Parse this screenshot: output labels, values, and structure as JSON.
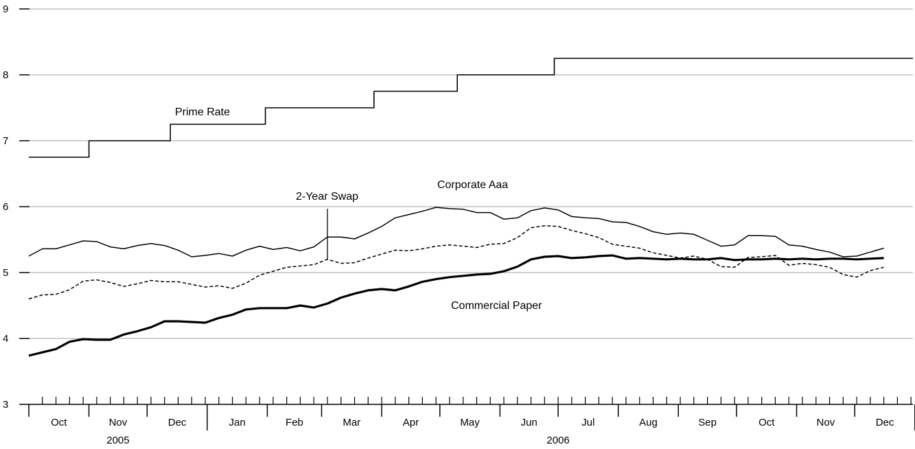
{
  "chart_data": {
    "type": "line",
    "title": "",
    "xlabel": "",
    "ylabel": "",
    "ylim": [
      3,
      9
    ],
    "yticks": [
      "3",
      "4",
      "5",
      "6",
      "7",
      "8",
      "9"
    ],
    "grid": "horizontal",
    "x_start": "2005-10-01",
    "x_end": "2006-12-31",
    "months": [
      "Oct",
      "Nov",
      "Dec",
      "Jan",
      "Feb",
      "Mar",
      "Apr",
      "May",
      "Jun",
      "Jul",
      "Aug",
      "Sep",
      "Oct",
      "Nov",
      "Dec"
    ],
    "years": [
      {
        "label": "2005",
        "center_month": 1
      },
      {
        "label": "2006",
        "center_month": 8.5
      }
    ],
    "series": [
      {
        "name": "Prime Rate",
        "style": "step",
        "points": [
          [
            "2005-10-01",
            6.75
          ],
          [
            "2005-11-01",
            7.0
          ],
          [
            "2005-12-13",
            7.25
          ],
          [
            "2006-01-31",
            7.5
          ],
          [
            "2006-03-28",
            7.75
          ],
          [
            "2006-05-10",
            8.0
          ],
          [
            "2006-06-29",
            8.25
          ],
          [
            "2006-12-31",
            8.25
          ]
        ]
      },
      {
        "name": "Corporate Aaa",
        "style": "thin",
        "points": [
          [
            "2005-10-01",
            5.25
          ],
          [
            "2005-10-08",
            5.36
          ],
          [
            "2005-10-15",
            5.36
          ],
          [
            "2005-10-22",
            5.42
          ],
          [
            "2005-10-29",
            5.48
          ],
          [
            "2005-11-05",
            5.47
          ],
          [
            "2005-11-12",
            5.39
          ],
          [
            "2005-11-19",
            5.36
          ],
          [
            "2005-11-26",
            5.41
          ],
          [
            "2005-12-03",
            5.44
          ],
          [
            "2005-12-10",
            5.41
          ],
          [
            "2005-12-17",
            5.34
          ],
          [
            "2005-12-24",
            5.24
          ],
          [
            "2005-12-31",
            5.26
          ],
          [
            "2006-01-07",
            5.29
          ],
          [
            "2006-01-14",
            5.25
          ],
          [
            "2006-01-21",
            5.34
          ],
          [
            "2006-01-28",
            5.4
          ],
          [
            "2006-02-04",
            5.35
          ],
          [
            "2006-02-11",
            5.38
          ],
          [
            "2006-02-18",
            5.33
          ],
          [
            "2006-02-25",
            5.39
          ],
          [
            "2006-03-04",
            5.54
          ],
          [
            "2006-03-11",
            5.54
          ],
          [
            "2006-03-18",
            5.51
          ],
          [
            "2006-03-25",
            5.6
          ],
          [
            "2006-04-01",
            5.7
          ],
          [
            "2006-04-08",
            5.83
          ],
          [
            "2006-04-15",
            5.88
          ],
          [
            "2006-04-22",
            5.93
          ],
          [
            "2006-04-29",
            5.99
          ],
          [
            "2006-05-06",
            5.97
          ],
          [
            "2006-05-13",
            5.96
          ],
          [
            "2006-05-20",
            5.91
          ],
          [
            "2006-05-27",
            5.91
          ],
          [
            "2006-06-03",
            5.81
          ],
          [
            "2006-06-10",
            5.83
          ],
          [
            "2006-06-17",
            5.94
          ],
          [
            "2006-06-24",
            5.98
          ],
          [
            "2006-07-01",
            5.95
          ],
          [
            "2006-07-08",
            5.85
          ],
          [
            "2006-07-15",
            5.83
          ],
          [
            "2006-07-22",
            5.82
          ],
          [
            "2006-07-29",
            5.77
          ],
          [
            "2006-08-05",
            5.76
          ],
          [
            "2006-08-12",
            5.7
          ],
          [
            "2006-08-19",
            5.62
          ],
          [
            "2006-08-26",
            5.58
          ],
          [
            "2006-09-02",
            5.6
          ],
          [
            "2006-09-09",
            5.58
          ],
          [
            "2006-09-16",
            5.49
          ],
          [
            "2006-09-23",
            5.4
          ],
          [
            "2006-09-30",
            5.42
          ],
          [
            "2006-10-07",
            5.56
          ],
          [
            "2006-10-14",
            5.56
          ],
          [
            "2006-10-21",
            5.55
          ],
          [
            "2006-10-28",
            5.42
          ],
          [
            "2006-11-04",
            5.4
          ],
          [
            "2006-11-11",
            5.35
          ],
          [
            "2006-11-18",
            5.31
          ],
          [
            "2006-11-25",
            5.24
          ],
          [
            "2006-12-02",
            5.25
          ],
          [
            "2006-12-09",
            5.31
          ],
          [
            "2006-12-16",
            5.37
          ]
        ]
      },
      {
        "name": "2-Year Swap",
        "style": "dashed",
        "points": [
          [
            "2005-10-01",
            4.6
          ],
          [
            "2005-10-08",
            4.66
          ],
          [
            "2005-10-15",
            4.67
          ],
          [
            "2005-10-22",
            4.74
          ],
          [
            "2005-10-29",
            4.87
          ],
          [
            "2005-11-05",
            4.89
          ],
          [
            "2005-11-12",
            4.85
          ],
          [
            "2005-11-19",
            4.79
          ],
          [
            "2005-11-26",
            4.83
          ],
          [
            "2005-12-03",
            4.88
          ],
          [
            "2005-12-10",
            4.86
          ],
          [
            "2005-12-17",
            4.86
          ],
          [
            "2005-12-24",
            4.82
          ],
          [
            "2005-12-31",
            4.78
          ],
          [
            "2006-01-07",
            4.8
          ],
          [
            "2006-01-14",
            4.76
          ],
          [
            "2006-01-21",
            4.84
          ],
          [
            "2006-01-28",
            4.96
          ],
          [
            "2006-02-04",
            5.02
          ],
          [
            "2006-02-11",
            5.08
          ],
          [
            "2006-02-18",
            5.1
          ],
          [
            "2006-02-25",
            5.12
          ],
          [
            "2006-03-04",
            5.2
          ],
          [
            "2006-03-11",
            5.14
          ],
          [
            "2006-03-18",
            5.15
          ],
          [
            "2006-03-25",
            5.22
          ],
          [
            "2006-04-01",
            5.28
          ],
          [
            "2006-04-08",
            5.34
          ],
          [
            "2006-04-15",
            5.33
          ],
          [
            "2006-04-22",
            5.36
          ],
          [
            "2006-04-29",
            5.4
          ],
          [
            "2006-05-06",
            5.42
          ],
          [
            "2006-05-13",
            5.4
          ],
          [
            "2006-05-20",
            5.38
          ],
          [
            "2006-05-27",
            5.43
          ],
          [
            "2006-06-03",
            5.44
          ],
          [
            "2006-06-10",
            5.53
          ],
          [
            "2006-06-17",
            5.68
          ],
          [
            "2006-06-24",
            5.71
          ],
          [
            "2006-07-01",
            5.7
          ],
          [
            "2006-07-08",
            5.64
          ],
          [
            "2006-07-15",
            5.59
          ],
          [
            "2006-07-22",
            5.53
          ],
          [
            "2006-07-29",
            5.43
          ],
          [
            "2006-08-05",
            5.4
          ],
          [
            "2006-08-12",
            5.37
          ],
          [
            "2006-08-19",
            5.3
          ],
          [
            "2006-08-26",
            5.26
          ],
          [
            "2006-09-02",
            5.22
          ],
          [
            "2006-09-09",
            5.25
          ],
          [
            "2006-09-16",
            5.2
          ],
          [
            "2006-09-23",
            5.09
          ],
          [
            "2006-09-30",
            5.08
          ],
          [
            "2006-10-07",
            5.23
          ],
          [
            "2006-10-14",
            5.24
          ],
          [
            "2006-10-21",
            5.26
          ],
          [
            "2006-10-28",
            5.11
          ],
          [
            "2006-11-04",
            5.14
          ],
          [
            "2006-11-11",
            5.12
          ],
          [
            "2006-11-18",
            5.08
          ],
          [
            "2006-11-25",
            4.97
          ],
          [
            "2006-12-02",
            4.93
          ],
          [
            "2006-12-09",
            5.03
          ],
          [
            "2006-12-16",
            5.08
          ]
        ]
      },
      {
        "name": "Commercial Paper",
        "style": "thick",
        "points": [
          [
            "2005-10-01",
            3.74
          ],
          [
            "2005-10-08",
            3.79
          ],
          [
            "2005-10-15",
            3.84
          ],
          [
            "2005-10-22",
            3.95
          ],
          [
            "2005-10-29",
            3.99
          ],
          [
            "2005-11-05",
            3.98
          ],
          [
            "2005-11-12",
            3.98
          ],
          [
            "2005-11-19",
            4.06
          ],
          [
            "2005-11-26",
            4.11
          ],
          [
            "2005-12-03",
            4.17
          ],
          [
            "2005-12-10",
            4.26
          ],
          [
            "2005-12-17",
            4.26
          ],
          [
            "2005-12-24",
            4.25
          ],
          [
            "2005-12-31",
            4.24
          ],
          [
            "2006-01-07",
            4.31
          ],
          [
            "2006-01-14",
            4.36
          ],
          [
            "2006-01-21",
            4.44
          ],
          [
            "2006-01-28",
            4.46
          ],
          [
            "2006-02-04",
            4.46
          ],
          [
            "2006-02-11",
            4.46
          ],
          [
            "2006-02-18",
            4.5
          ],
          [
            "2006-02-25",
            4.47
          ],
          [
            "2006-03-04",
            4.53
          ],
          [
            "2006-03-11",
            4.62
          ],
          [
            "2006-03-18",
            4.68
          ],
          [
            "2006-03-25",
            4.73
          ],
          [
            "2006-04-01",
            4.75
          ],
          [
            "2006-04-08",
            4.73
          ],
          [
            "2006-04-15",
            4.79
          ],
          [
            "2006-04-22",
            4.86
          ],
          [
            "2006-04-29",
            4.9
          ],
          [
            "2006-05-06",
            4.93
          ],
          [
            "2006-05-13",
            4.95
          ],
          [
            "2006-05-20",
            4.97
          ],
          [
            "2006-05-27",
            4.98
          ],
          [
            "2006-06-03",
            5.02
          ],
          [
            "2006-06-10",
            5.09
          ],
          [
            "2006-06-17",
            5.2
          ],
          [
            "2006-06-24",
            5.24
          ],
          [
            "2006-07-01",
            5.25
          ],
          [
            "2006-07-08",
            5.22
          ],
          [
            "2006-07-15",
            5.23
          ],
          [
            "2006-07-22",
            5.25
          ],
          [
            "2006-07-29",
            5.26
          ],
          [
            "2006-08-05",
            5.21
          ],
          [
            "2006-08-12",
            5.22
          ],
          [
            "2006-08-19",
            5.21
          ],
          [
            "2006-08-26",
            5.2
          ],
          [
            "2006-09-02",
            5.21
          ],
          [
            "2006-09-09",
            5.2
          ],
          [
            "2006-09-16",
            5.2
          ],
          [
            "2006-09-23",
            5.22
          ],
          [
            "2006-09-30",
            5.19
          ],
          [
            "2006-10-07",
            5.2
          ],
          [
            "2006-10-14",
            5.2
          ],
          [
            "2006-10-21",
            5.21
          ],
          [
            "2006-10-28",
            5.2
          ],
          [
            "2006-11-04",
            5.21
          ],
          [
            "2006-11-11",
            5.2
          ],
          [
            "2006-11-18",
            5.21
          ],
          [
            "2006-11-25",
            5.21
          ],
          [
            "2006-12-02",
            5.2
          ],
          [
            "2006-12-09",
            5.21
          ],
          [
            "2006-12-16",
            5.22
          ]
        ]
      }
    ],
    "annotations": [
      {
        "text": "Prime Rate",
        "series": "Prime Rate"
      },
      {
        "text": "Corporate Aaa",
        "series": "Corporate Aaa"
      },
      {
        "text": "2-Year Swap",
        "series": "2-Year Swap",
        "pointer_date": "2006-03-04"
      },
      {
        "text": "Commercial Paper",
        "series": "Commercial Paper"
      }
    ]
  }
}
